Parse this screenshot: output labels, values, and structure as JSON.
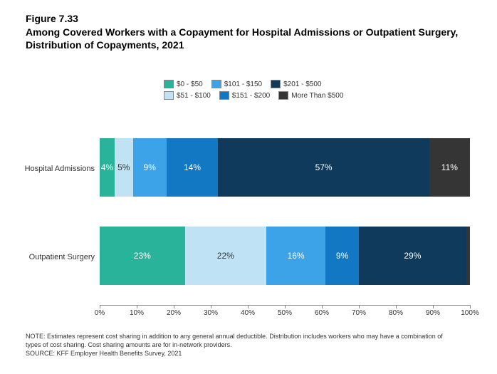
{
  "figure_label": "Figure 7.33",
  "title_line1": "Among Covered Workers with a Copayment for Hospital Admissions or Outpatient Surgery,",
  "title_line2": "Distribution of Copayments, 2021",
  "legend": {
    "items": [
      {
        "label": "$0 - $50",
        "color": "#29b39a"
      },
      {
        "label": "$101 - $150",
        "color": "#3ca3e8"
      },
      {
        "label": "$201 - $500",
        "color": "#0f3a5c"
      },
      {
        "label": "$51 - $100",
        "color": "#bfe3f5"
      },
      {
        "label": "$151 - $200",
        "color": "#1378c4"
      },
      {
        "label": "More Than $500",
        "color": "#353535"
      }
    ]
  },
  "chart": {
    "type": "stacked-bar-horizontal",
    "xlim": [
      0,
      100
    ],
    "xtick_step": 10,
    "xtick_suffix": "%",
    "background_color": "#ffffff",
    "label_fontsize": 11,
    "value_fontsize": 12,
    "categories": [
      {
        "name": "Hospital Admissions",
        "values": [
          4,
          5,
          9,
          14,
          57,
          11
        ]
      },
      {
        "name": "Outpatient Surgery",
        "values": [
          23,
          22,
          16,
          9,
          29,
          1
        ]
      }
    ],
    "series_order_colors": [
      "#29b39a",
      "#bfe3f5",
      "#3ca3e8",
      "#1378c4",
      "#0f3a5c",
      "#353535"
    ],
    "series_order_labels": [
      "$0 - $50",
      "$51 - $100",
      "$101 - $150",
      "$151 - $200",
      "$201 - $500",
      "More Than $500"
    ],
    "label_colors_dark_on": [
      "#bfe3f5"
    ]
  },
  "notes": {
    "line1": "NOTE: Estimates represent cost sharing in addition to any general annual deductible. Distribution includes workers who may have a combination of",
    "line2": "types of cost sharing. Cost sharing amounts are for in-network providers.",
    "source": "SOURCE: KFF Employer Health Benefits Survey, 2021"
  }
}
